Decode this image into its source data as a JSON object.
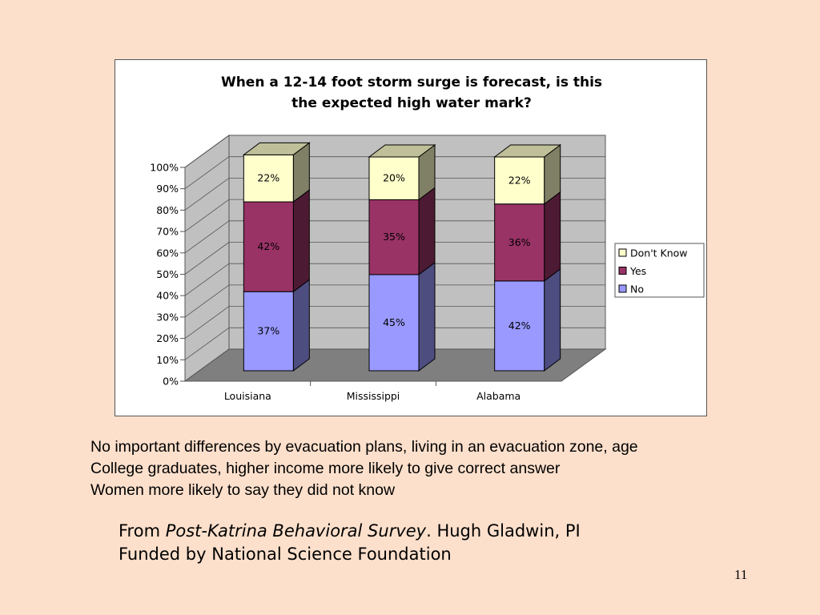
{
  "chart_data": {
    "type": "bar",
    "stacked": true,
    "three_d": true,
    "title_lines": [
      "When a 12-14 foot storm surge is forecast, is this",
      "the expected high water mark?"
    ],
    "categories": [
      "Louisiana",
      "Mississippi",
      "Alabama"
    ],
    "series": [
      {
        "name": "No",
        "values": [
          37,
          45,
          42
        ],
        "labels": [
          "37%",
          "45%",
          "42%"
        ],
        "color": "#9999ff"
      },
      {
        "name": "Yes",
        "values": [
          42,
          35,
          36
        ],
        "labels": [
          "42%",
          "35%",
          "36%"
        ],
        "color": "#993366"
      },
      {
        "name": "Don't Know",
        "values": [
          22,
          20,
          22
        ],
        "labels": [
          "22%",
          "20%",
          "22%"
        ],
        "color": "#ffffcc"
      }
    ],
    "ylim": [
      0,
      100
    ],
    "y_ticks": [
      "0%",
      "10%",
      "20%",
      "30%",
      "40%",
      "50%",
      "60%",
      "70%",
      "80%",
      "90%",
      "100%"
    ],
    "legend_order": [
      "Don't Know",
      "Yes",
      "No"
    ],
    "legend_position": "right",
    "grid": true
  },
  "notes": [
    "No important differences by evacuation plans, living in an evacuation zone, age",
    "College graduates, higher income more likely to give correct answer",
    "Women more likely to say they did not know"
  ],
  "source": {
    "prefix": "From ",
    "survey_title": "Post-Katrina Behavioral Survey",
    "suffix": ". Hugh Gladwin, PI",
    "funding": "Funded by National Science Foundation"
  },
  "page_number": "11"
}
